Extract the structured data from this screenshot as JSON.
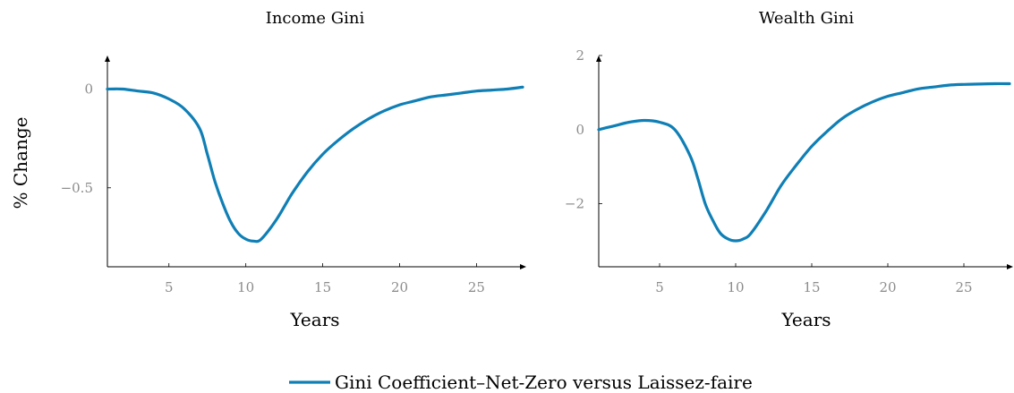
{
  "colors": {
    "series": "#0f7fb5",
    "axis": "#000000",
    "tick_label": "#8c8c8c"
  },
  "legend": {
    "entry": "Gini Coefficient–Net-Zero versus Laissez-faire"
  },
  "chart_data": [
    {
      "type": "line",
      "title": "Income Gini",
      "xlabel": "Years",
      "ylabel": "% Change",
      "xlim": [
        1,
        28
      ],
      "ylim": [
        -0.9,
        0.17
      ],
      "xticks": [
        5,
        10,
        15,
        20,
        25
      ],
      "yticks": [
        0,
        -0.5
      ],
      "ytick_labels": [
        "0",
        "−0.5"
      ],
      "grid": false,
      "series": [
        {
          "x": [
            1,
            2,
            3,
            4,
            5,
            6,
            7,
            7.5,
            8,
            8.5,
            9,
            9.5,
            10,
            10.5,
            11,
            12,
            13,
            14,
            15,
            16,
            17,
            18,
            19,
            20,
            21,
            22,
            23,
            24,
            25,
            26,
            27,
            28
          ],
          "y": [
            0.0,
            0.0,
            -0.01,
            -0.02,
            -0.05,
            -0.1,
            -0.2,
            -0.33,
            -0.47,
            -0.58,
            -0.67,
            -0.73,
            -0.76,
            -0.77,
            -0.76,
            -0.66,
            -0.53,
            -0.42,
            -0.33,
            -0.26,
            -0.2,
            -0.15,
            -0.11,
            -0.08,
            -0.06,
            -0.04,
            -0.03,
            -0.02,
            -0.01,
            -0.005,
            0.0,
            0.01
          ]
        }
      ]
    },
    {
      "type": "line",
      "title": "Wealth Gini",
      "xlabel": "Years",
      "ylabel": "",
      "xlim": [
        1,
        28
      ],
      "ylim": [
        -3.7,
        2.0
      ],
      "xticks": [
        5,
        10,
        15,
        20,
        25
      ],
      "yticks": [
        2,
        0,
        -2
      ],
      "ytick_labels": [
        "2",
        "0",
        "−2"
      ],
      "grid": false,
      "series": [
        {
          "x": [
            1,
            2,
            3,
            4,
            5,
            6,
            7,
            7.5,
            8,
            8.5,
            9,
            9.5,
            10,
            10.5,
            11,
            12,
            13,
            14,
            15,
            16,
            17,
            18,
            19,
            20,
            21,
            22,
            23,
            24,
            25,
            26,
            27,
            28
          ],
          "y": [
            0.0,
            0.1,
            0.2,
            0.25,
            0.2,
            0.0,
            -0.7,
            -1.3,
            -2.0,
            -2.45,
            -2.8,
            -2.95,
            -3.0,
            -2.95,
            -2.8,
            -2.2,
            -1.5,
            -0.95,
            -0.45,
            -0.05,
            0.3,
            0.55,
            0.75,
            0.9,
            1.0,
            1.1,
            1.15,
            1.2,
            1.22,
            1.23,
            1.24,
            1.24
          ]
        }
      ]
    }
  ]
}
